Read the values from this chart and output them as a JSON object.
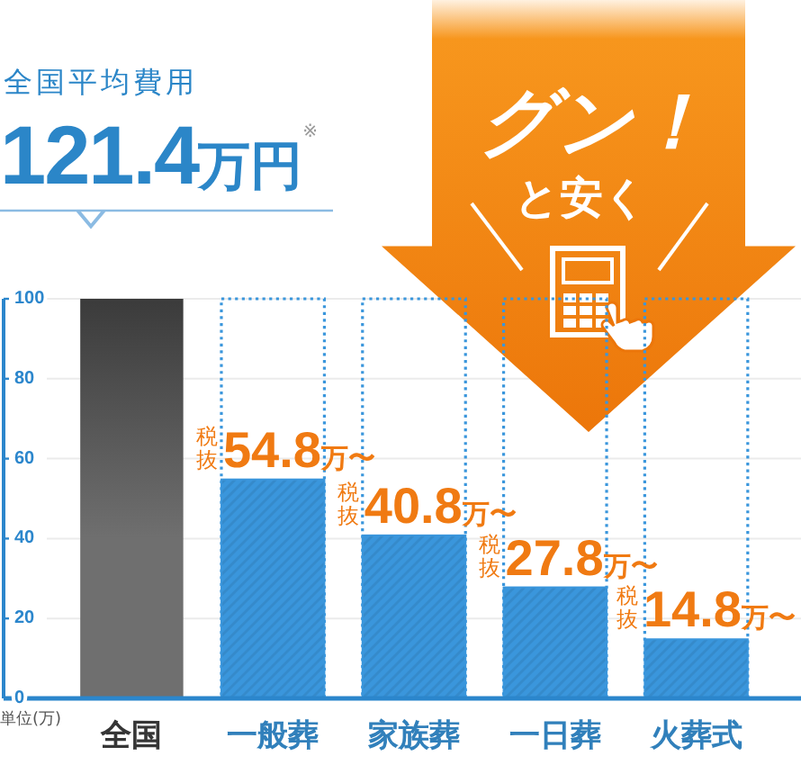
{
  "chart_data": {
    "type": "bar",
    "title": "全国平均費用",
    "subtitle": "121.4万円$^{※}$",
    "ylabel": "単位(万)",
    "categories": [
      "全国",
      "一般葬",
      "家族葬",
      "一日葬",
      "火葬式"
    ],
    "series": [
      {
        "color": "#3a96dc",
        "line_style": "dotted",
        "values": [
          null,
          100,
          100,
          100,
          100
        ]
      },
      {
        "colors": [
          "#5a5a5a",
          "#3a96dc",
          "#3a96dc",
          "#3a96dc",
          "#3a96dc"
        ],
        "values": [
          100,
          54.8,
          40.8,
          27.8,
          14.8
        ],
        "value_labels": [
          null,
          "税抜54.8万〜",
          "税抜40.8万〜",
          "税抜27.8万〜",
          "税抜14.8万〜"
        ]
      }
    ],
    "ylim": [
      0,
      100
    ],
    "yticks": [
      0,
      20,
      40,
      60,
      80,
      100
    ],
    "grid": "y",
    "annotations": [
      "グン！",
      "と安く"
    ]
  }
}
